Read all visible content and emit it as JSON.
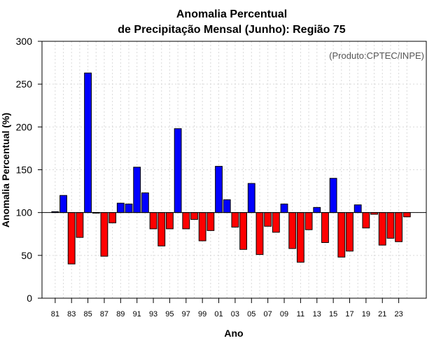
{
  "chart_data": {
    "type": "bar",
    "title_line1": "Anomalia Percentual",
    "title_line2": "de Precipitação Mensal (Junho): Região 75",
    "xlabel": "Ano",
    "ylabel": "Anomalia Percentual (%)",
    "credit": "(Produto:CPTEC/INPE)",
    "baseline": 100,
    "ylim": [
      0,
      300
    ],
    "yticks": [
      0,
      50,
      100,
      150,
      200,
      250,
      300
    ],
    "categories": [
      "81",
      "82",
      "83",
      "84",
      "85",
      "86",
      "87",
      "88",
      "89",
      "90",
      "91",
      "92",
      "93",
      "94",
      "95",
      "96",
      "97",
      "98",
      "99",
      "00",
      "01",
      "02",
      "03",
      "04",
      "05",
      "06",
      "07",
      "08",
      "09",
      "10",
      "11",
      "12",
      "13",
      "14",
      "15",
      "16",
      "17",
      "18",
      "19",
      "20",
      "21",
      "22",
      "23",
      "24"
    ],
    "xtick_labels": [
      "81",
      "83",
      "85",
      "87",
      "89",
      "91",
      "93",
      "95",
      "97",
      "99",
      "01",
      "03",
      "05",
      "07",
      "09",
      "11",
      "13",
      "15",
      "17",
      "19",
      "21",
      "23"
    ],
    "values": [
      101,
      120,
      40,
      71,
      263,
      100,
      49,
      88,
      111,
      110,
      153,
      123,
      81,
      61,
      81,
      198,
      81,
      92,
      67,
      79,
      154,
      115,
      83,
      57,
      134,
      51,
      84,
      77,
      110,
      58,
      42,
      80,
      106,
      65,
      140,
      48,
      55,
      109,
      82,
      98,
      62,
      70,
      66,
      95
    ],
    "colors": {
      "above": "#0000ff",
      "below": "#ff0000"
    }
  }
}
